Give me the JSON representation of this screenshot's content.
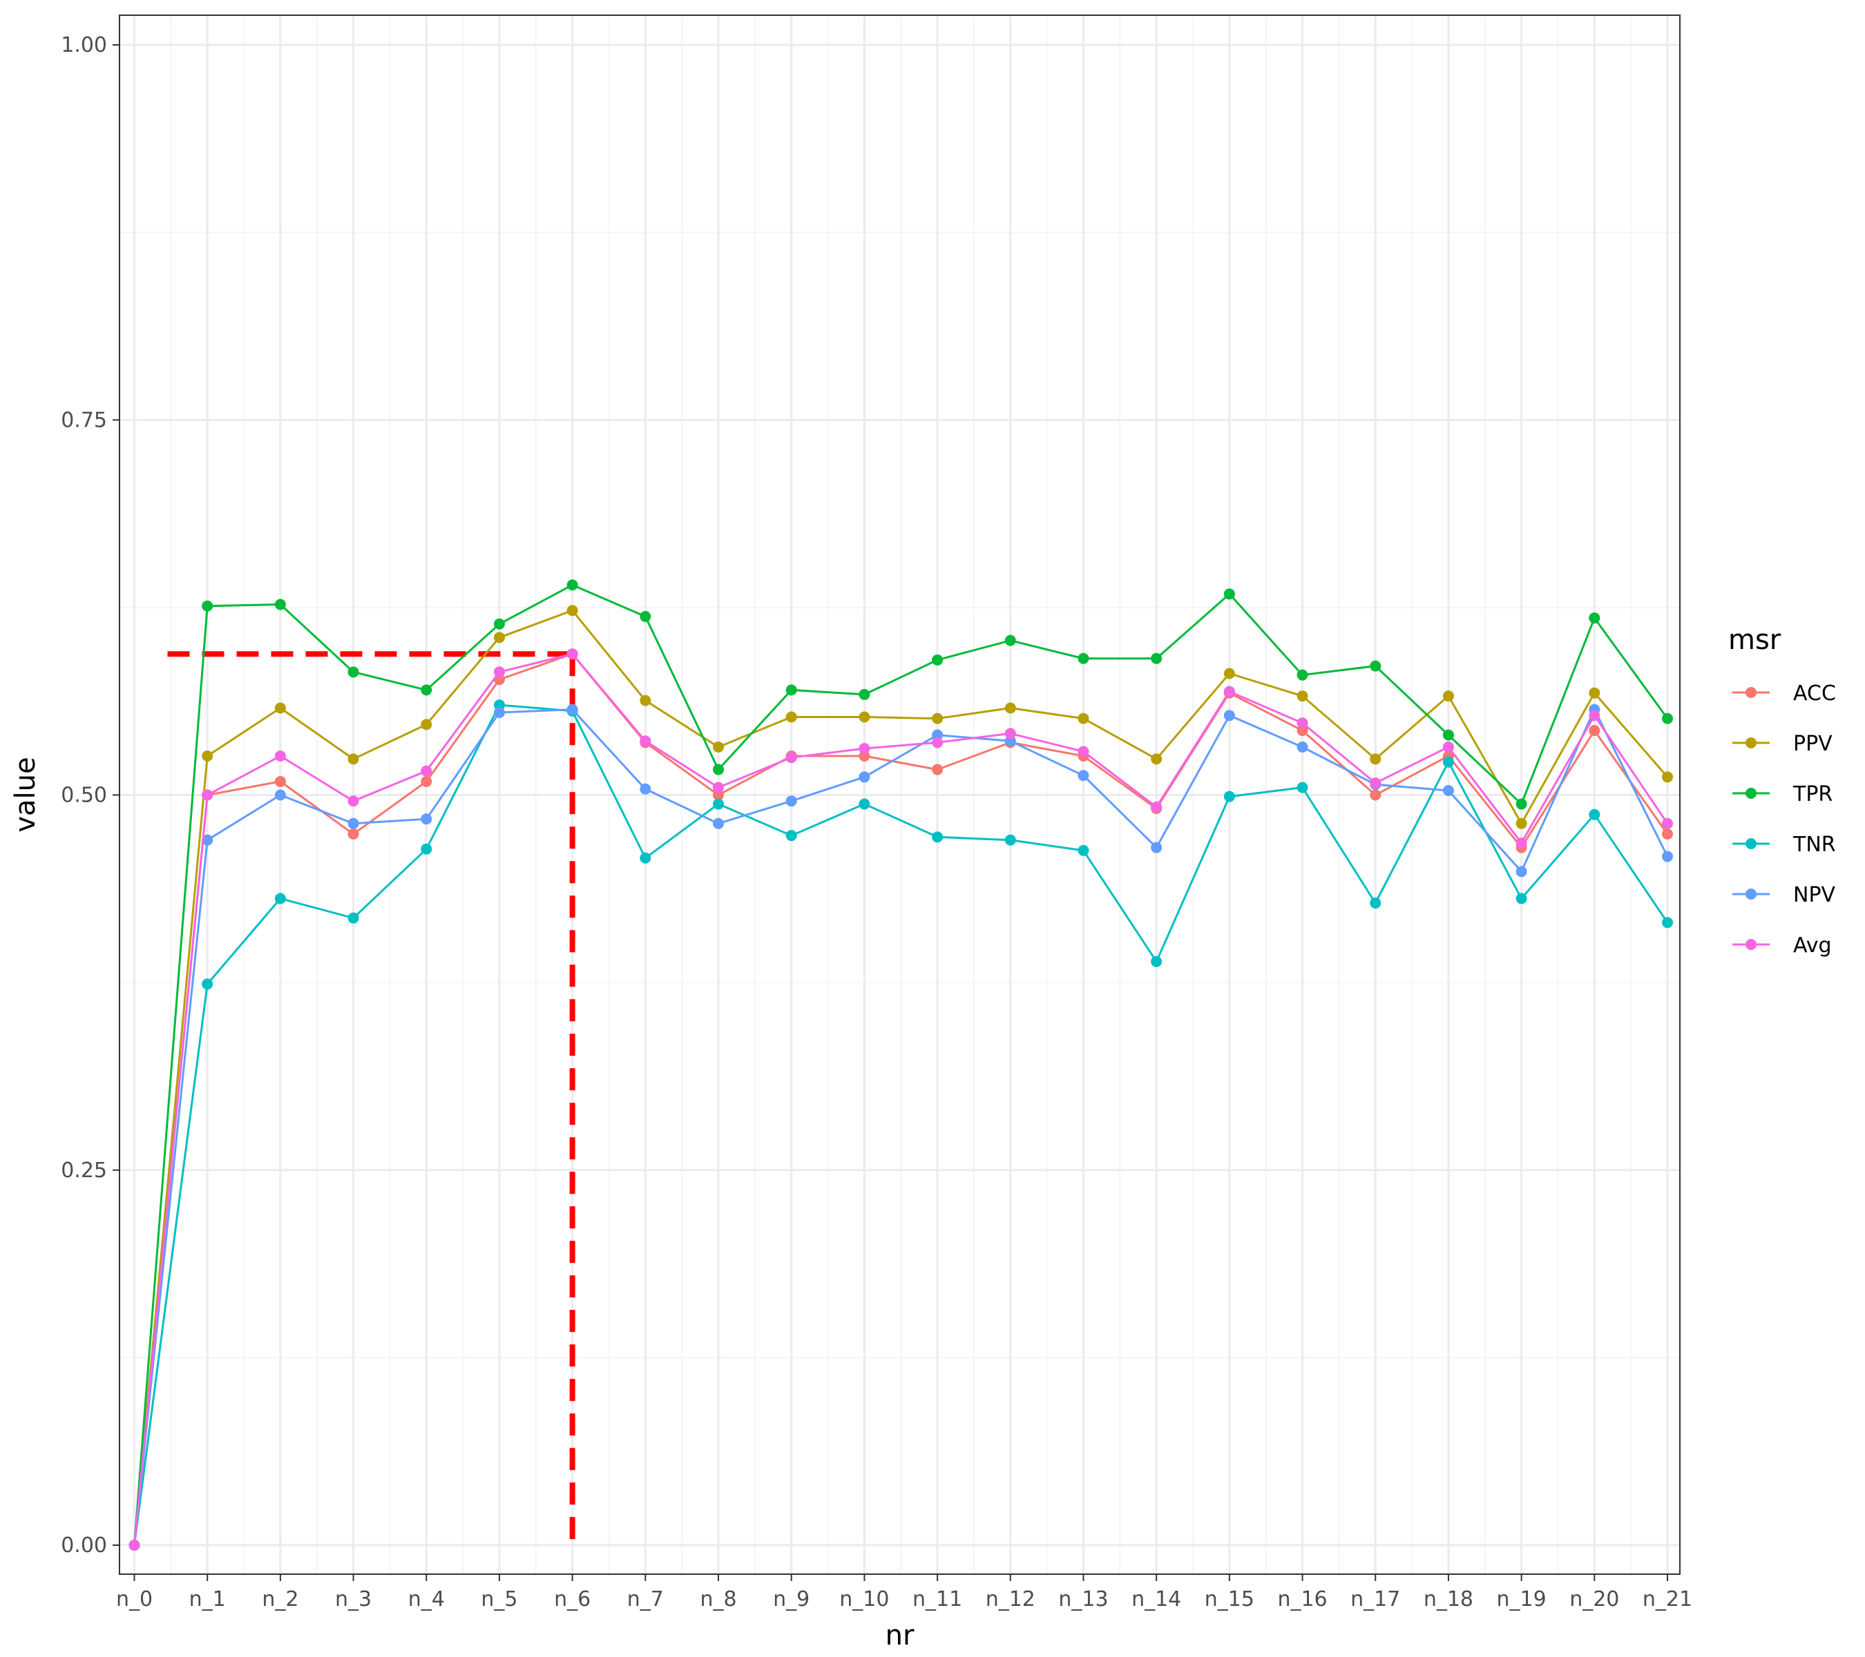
{
  "chart_data": {
    "type": "line",
    "xlabel": "nr",
    "ylabel": "value",
    "ylim": [
      0,
      1
    ],
    "yticks": [
      "0.00",
      "0.25",
      "0.50",
      "0.75",
      "1.00"
    ],
    "grid": true,
    "legend": {
      "title": "msr",
      "placement": "right"
    },
    "x": [
      "n_0",
      "n_1",
      "n_2",
      "n_3",
      "n_4",
      "n_5",
      "n_6",
      "n_7",
      "n_8",
      "n_9",
      "n_10",
      "n_11",
      "n_12",
      "n_13",
      "n_14",
      "n_15",
      "n_16",
      "n_17",
      "n_18",
      "n_19",
      "n_20",
      "n_21"
    ],
    "series": [
      {
        "name": "ACC",
        "color": "#F8766D",
        "values": [
          0,
          0.5,
          0.509,
          0.474,
          0.509,
          0.577,
          0.594,
          0.535,
          0.5,
          0.526,
          0.526,
          0.517,
          0.535,
          0.526,
          0.491,
          0.568,
          0.543,
          0.5,
          0.526,
          0.465,
          0.543,
          0.474
        ]
      },
      {
        "name": "PPV",
        "color": "#B79F00",
        "values": [
          0,
          0.526,
          0.558,
          0.524,
          0.547,
          0.605,
          0.623,
          0.563,
          0.532,
          0.552,
          0.552,
          0.551,
          0.558,
          0.551,
          0.524,
          0.581,
          0.566,
          0.524,
          0.566,
          0.481,
          0.568,
          0.512
        ]
      },
      {
        "name": "TPR",
        "color": "#00BA38",
        "values": [
          0,
          0.626,
          0.627,
          0.582,
          0.57,
          0.614,
          0.64,
          0.619,
          0.517,
          0.57,
          0.567,
          0.59,
          0.603,
          0.591,
          0.591,
          0.634,
          0.58,
          0.586,
          0.54,
          0.494,
          0.618,
          0.551
        ]
      },
      {
        "name": "TNR",
        "color": "#00BFC4",
        "values": [
          0,
          0.374,
          0.431,
          0.418,
          0.464,
          0.56,
          0.556,
          0.458,
          0.494,
          0.473,
          0.494,
          0.472,
          0.47,
          0.463,
          0.389,
          0.499,
          0.505,
          0.428,
          0.522,
          0.431,
          0.487,
          0.415
        ]
      },
      {
        "name": "NPV",
        "color": "#619CFF",
        "values": [
          0,
          0.47,
          0.5,
          0.481,
          0.484,
          0.555,
          0.557,
          0.504,
          0.481,
          0.496,
          0.512,
          0.54,
          0.536,
          0.513,
          0.465,
          0.553,
          0.532,
          0.507,
          0.503,
          0.449,
          0.557,
          0.459
        ]
      },
      {
        "name": "Avg",
        "color": "#F564E3",
        "values": [
          0,
          0.5,
          0.526,
          0.496,
          0.516,
          0.582,
          0.594,
          0.536,
          0.505,
          0.525,
          0.531,
          0.535,
          0.541,
          0.529,
          0.492,
          0.569,
          0.548,
          0.508,
          0.532,
          0.468,
          0.553,
          0.481
        ]
      }
    ],
    "annotation": {
      "type": "reference-lines",
      "color": "#FF0000",
      "x_at": "n_6",
      "y_at": 0.594
    }
  }
}
